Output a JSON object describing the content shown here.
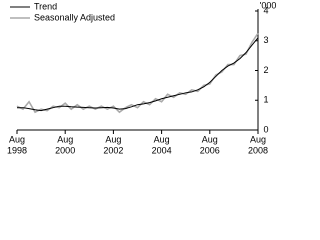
{
  "chart_data": {
    "type": "line",
    "x": [
      "1998-08",
      "1998-11",
      "1999-02",
      "1999-05",
      "1999-08",
      "1999-11",
      "2000-02",
      "2000-05",
      "2000-08",
      "2000-11",
      "2001-02",
      "2001-05",
      "2001-08",
      "2001-11",
      "2002-02",
      "2002-05",
      "2002-08",
      "2002-11",
      "2003-02",
      "2003-05",
      "2003-08",
      "2003-11",
      "2004-02",
      "2004-05",
      "2004-08",
      "2004-11",
      "2005-02",
      "2005-05",
      "2005-08",
      "2005-11",
      "2006-02",
      "2006-05",
      "2006-08",
      "2006-11",
      "2007-02",
      "2007-05",
      "2007-08",
      "2007-11",
      "2008-02",
      "2008-05",
      "2008-08"
    ],
    "series": [
      {
        "name": "Trend",
        "color": "#000000",
        "values": [
          0.75,
          0.75,
          0.72,
          0.68,
          0.65,
          0.7,
          0.75,
          0.8,
          0.8,
          0.78,
          0.77,
          0.76,
          0.75,
          0.74,
          0.75,
          0.76,
          0.74,
          0.7,
          0.72,
          0.78,
          0.85,
          0.88,
          0.92,
          0.98,
          1.05,
          1.1,
          1.15,
          1.2,
          1.25,
          1.28,
          1.35,
          1.45,
          1.6,
          1.8,
          2.0,
          2.15,
          2.25,
          2.4,
          2.6,
          2.85,
          3.1
        ]
      },
      {
        "name": "Seasonally Adjusted",
        "color": "#aaaaaa",
        "values": [
          0.8,
          0.7,
          0.95,
          0.6,
          0.7,
          0.65,
          0.8,
          0.75,
          0.9,
          0.7,
          0.85,
          0.7,
          0.8,
          0.7,
          0.8,
          0.7,
          0.8,
          0.6,
          0.75,
          0.85,
          0.75,
          0.95,
          0.85,
          1.05,
          0.95,
          1.2,
          1.1,
          1.25,
          1.2,
          1.35,
          1.3,
          1.5,
          1.55,
          1.85,
          1.95,
          2.2,
          2.2,
          2.5,
          2.55,
          2.95,
          3.25
        ]
      }
    ],
    "ylim": [
      0,
      4
    ],
    "yticks": [
      0,
      1,
      2,
      3,
      4
    ],
    "y_unit": "'000",
    "xlim": [
      "1998-08",
      "2008-08"
    ],
    "xticks": [
      {
        "value": "1998-08",
        "label": [
          "Aug",
          "1998"
        ]
      },
      {
        "value": "2000-08",
        "label": [
          "Aug",
          "2000"
        ]
      },
      {
        "value": "2002-08",
        "label": [
          "Aug",
          "2002"
        ]
      },
      {
        "value": "2004-08",
        "label": [
          "Aug",
          "2004"
        ]
      },
      {
        "value": "2006-08",
        "label": [
          "Aug",
          "2006"
        ]
      },
      {
        "value": "2008-08",
        "label": [
          "Aug",
          "2008"
        ]
      }
    ],
    "legend": "top-left"
  }
}
